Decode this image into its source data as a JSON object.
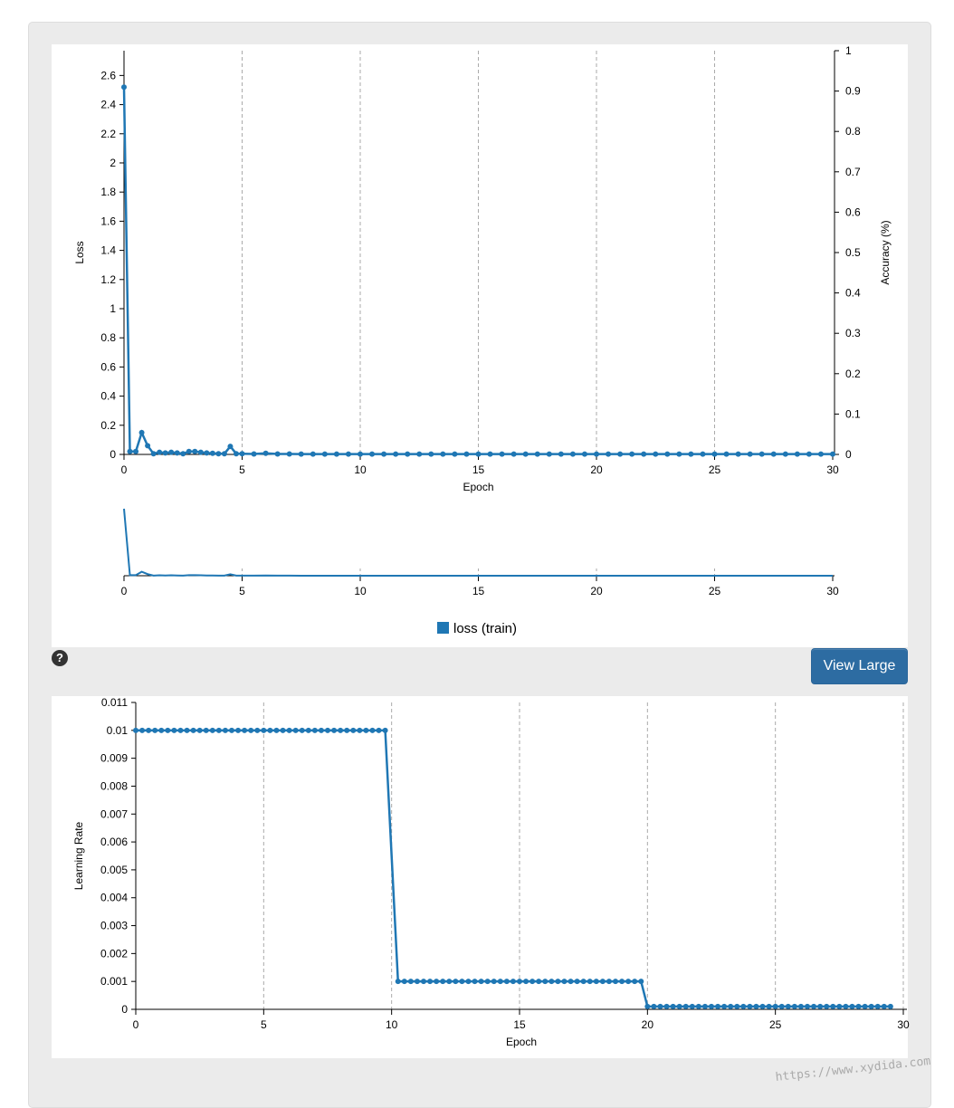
{
  "ui": {
    "view_large_label": "View Large",
    "help_icon": "question-circle-icon",
    "watermark": "https://www.xydida.com",
    "accent_color": "#1f77b4",
    "button_color": "#2d6ca2"
  },
  "chart_data": [
    {
      "type": "line",
      "xlabel": "Epoch",
      "ylabel": "Loss",
      "y2label": "Accuracy (%)",
      "xlim": [
        0,
        30
      ],
      "ylim": [
        0,
        2.77
      ],
      "y2lim": [
        0,
        1
      ],
      "xticks": [
        0,
        5,
        10,
        15,
        20,
        25,
        30
      ],
      "yticks": [
        0,
        0.2,
        0.4,
        0.6,
        0.8,
        1,
        1.2,
        1.4,
        1.6,
        1.8,
        2,
        2.2,
        2.4,
        2.6
      ],
      "y2ticks": [
        0,
        0.1,
        0.2,
        0.3,
        0.4,
        0.5,
        0.6,
        0.7,
        0.8,
        0.9,
        1
      ],
      "grid": "vertical dashed",
      "legend_position": "bottom-center",
      "series": [
        {
          "name": "loss (train)",
          "color": "#1f77b4",
          "x": [
            0,
            0.25,
            0.5,
            0.75,
            1,
            1.25,
            1.5,
            1.75,
            2,
            2.25,
            2.5,
            2.75,
            3,
            3.25,
            3.5,
            3.75,
            4,
            4.25,
            4.5,
            4.75,
            5,
            5.5,
            6,
            6.5,
            7,
            7.5,
            8,
            8.5,
            9,
            9.5,
            10,
            10.5,
            11,
            11.5,
            12,
            12.5,
            13,
            13.5,
            14,
            14.5,
            15,
            15.5,
            16,
            16.5,
            17,
            17.5,
            18,
            18.5,
            19,
            19.5,
            20,
            20.5,
            21,
            21.5,
            22,
            22.5,
            23,
            23.5,
            24,
            24.5,
            25,
            25.5,
            26,
            26.5,
            27,
            27.5,
            28,
            28.5,
            29,
            29.5,
            30
          ],
          "values": [
            2.52,
            0.02,
            0.02,
            0.15,
            0.06,
            0.005,
            0.015,
            0.01,
            0.015,
            0.01,
            0.005,
            0.02,
            0.02,
            0.015,
            0.01,
            0.008,
            0.005,
            0.005,
            0.055,
            0.005,
            0.005,
            0.003,
            0.008,
            0.003,
            0.003,
            0.002,
            0.002,
            0.002,
            0.002,
            0.002,
            0.002,
            0.002,
            0.002,
            0.002,
            0.002,
            0.002,
            0.002,
            0.002,
            0.002,
            0.002,
            0.002,
            0.002,
            0.002,
            0.002,
            0.002,
            0.002,
            0.002,
            0.002,
            0.002,
            0.002,
            0.002,
            0.002,
            0.002,
            0.002,
            0.002,
            0.002,
            0.002,
            0.002,
            0.002,
            0.002,
            0.002,
            0.002,
            0.002,
            0.002,
            0.002,
            0.002,
            0.002,
            0.002,
            0.002,
            0.002,
            0.002
          ]
        }
      ]
    },
    {
      "type": "line",
      "xlabel": "Epoch",
      "ylabel": "Learning Rate",
      "xlim": [
        0,
        30
      ],
      "ylim": [
        0,
        0.011
      ],
      "xticks": [
        0,
        5,
        10,
        15,
        20,
        25,
        30
      ],
      "yticks": [
        0,
        0.001,
        0.002,
        0.003,
        0.004,
        0.005,
        0.006,
        0.007,
        0.008,
        0.009,
        0.01,
        0.011
      ],
      "grid": "vertical dashed",
      "series": [
        {
          "color": "#1f77b4",
          "x": [
            0,
            0.25,
            0.5,
            0.75,
            1,
            1.25,
            1.5,
            1.75,
            2,
            2.25,
            2.5,
            2.75,
            3,
            3.25,
            3.5,
            3.75,
            4,
            4.25,
            4.5,
            4.75,
            5,
            5.25,
            5.5,
            5.75,
            6,
            6.25,
            6.5,
            6.75,
            7,
            7.25,
            7.5,
            7.75,
            8,
            8.25,
            8.5,
            8.75,
            9,
            9.25,
            9.5,
            9.75,
            10.25,
            10.5,
            10.75,
            11,
            11.25,
            11.5,
            11.75,
            12,
            12.25,
            12.5,
            12.75,
            13,
            13.25,
            13.5,
            13.75,
            14,
            14.25,
            14.5,
            14.75,
            15,
            15.25,
            15.5,
            15.75,
            16,
            16.25,
            16.5,
            16.75,
            17,
            17.25,
            17.5,
            17.75,
            18,
            18.25,
            18.5,
            18.75,
            19,
            19.25,
            19.5,
            19.75,
            20.0,
            20.25,
            20.5,
            20.75,
            21,
            21.25,
            21.5,
            21.75,
            22,
            22.25,
            22.5,
            22.75,
            23,
            23.25,
            23.5,
            23.75,
            24,
            24.25,
            24.5,
            24.75,
            25,
            25.25,
            25.5,
            25.75,
            26,
            26.25,
            26.5,
            26.75,
            27,
            27.25,
            27.5,
            27.75,
            28,
            28.25,
            28.5,
            28.75,
            29,
            29.25,
            29.5
          ],
          "values": [
            0.01,
            0.01,
            0.01,
            0.01,
            0.01,
            0.01,
            0.01,
            0.01,
            0.01,
            0.01,
            0.01,
            0.01,
            0.01,
            0.01,
            0.01,
            0.01,
            0.01,
            0.01,
            0.01,
            0.01,
            0.01,
            0.01,
            0.01,
            0.01,
            0.01,
            0.01,
            0.01,
            0.01,
            0.01,
            0.01,
            0.01,
            0.01,
            0.01,
            0.01,
            0.01,
            0.01,
            0.01,
            0.01,
            0.01,
            0.01,
            0.001,
            0.001,
            0.001,
            0.001,
            0.001,
            0.001,
            0.001,
            0.001,
            0.001,
            0.001,
            0.001,
            0.001,
            0.001,
            0.001,
            0.001,
            0.001,
            0.001,
            0.001,
            0.001,
            0.001,
            0.001,
            0.001,
            0.001,
            0.001,
            0.001,
            0.001,
            0.001,
            0.001,
            0.001,
            0.001,
            0.001,
            0.001,
            0.001,
            0.001,
            0.001,
            0.001,
            0.001,
            0.001,
            0.001,
            0.0001,
            0.0001,
            0.0001,
            0.0001,
            0.0001,
            0.0001,
            0.0001,
            0.0001,
            0.0001,
            0.0001,
            0.0001,
            0.0001,
            0.0001,
            0.0001,
            0.0001,
            0.0001,
            0.0001,
            0.0001,
            0.0001,
            0.0001,
            0.0001,
            0.0001,
            0.0001,
            0.0001,
            0.0001,
            0.0001,
            0.0001,
            0.0001,
            0.0001,
            0.0001,
            0.0001,
            0.0001,
            0.0001,
            0.0001,
            0.0001,
            0.0001,
            0.0001,
            0.0001,
            0.0001
          ]
        }
      ]
    }
  ]
}
